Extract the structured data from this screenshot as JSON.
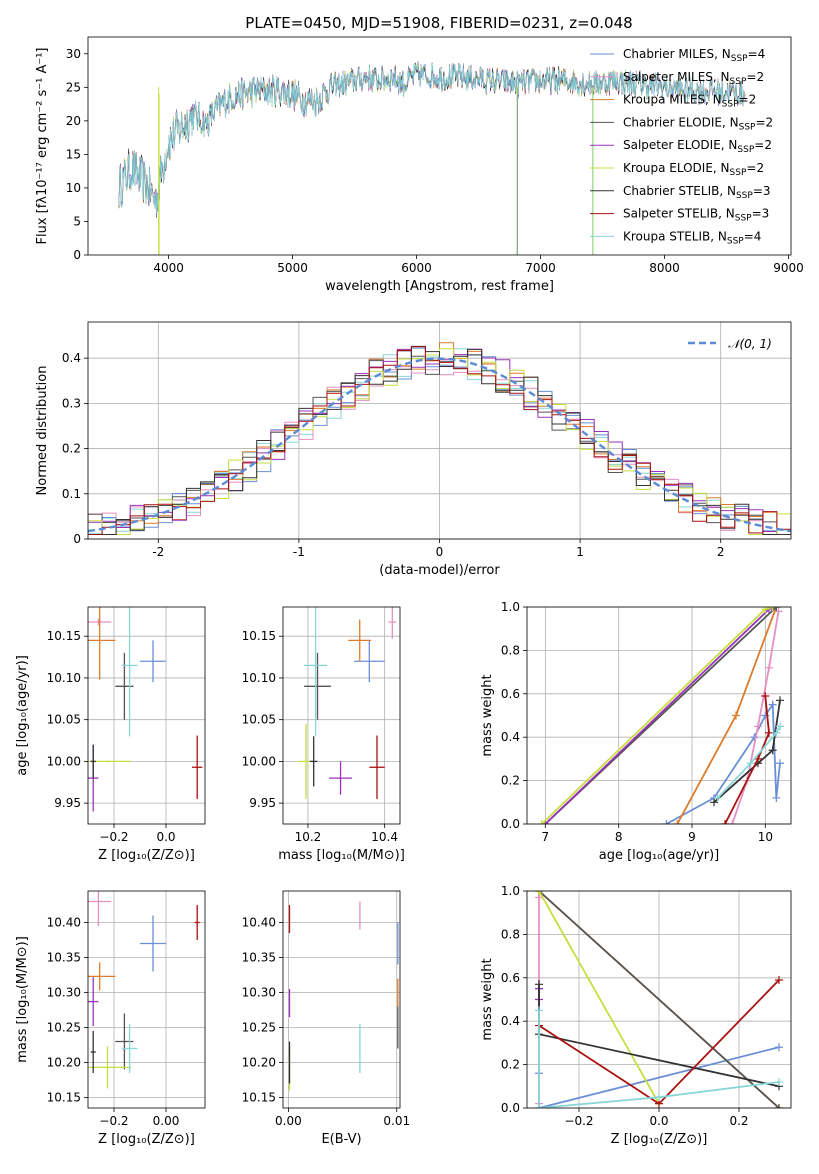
{
  "colors": [
    "#6a8fd6",
    "#e58fc2",
    "#dd7b2a",
    "#555555",
    "#9933bb",
    "#c8dd40",
    "#333333",
    "#aa1111",
    "#88d6d6"
  ],
  "chart_data": [
    {
      "type": "line",
      "title": "PLATE=0450, MJD=51908, FIBERID=0231, z=0.048",
      "xlabel": "wavelength [Angstrom, rest frame]",
      "ylabel": "Flux [fλ10⁻¹⁷ erg cm⁻² s⁻¹ A⁻¹]",
      "xlim": [
        3350,
        9020
      ],
      "ylim": [
        0,
        32.5
      ],
      "xticks": [
        4000,
        5000,
        6000,
        7000,
        8000,
        9000
      ],
      "yticks": [
        0,
        5,
        10,
        15,
        20,
        25,
        30
      ],
      "legend": "top-right",
      "spectrum_range": [
        3600,
        8650
      ],
      "spectrum_points": [
        [
          3600,
          10
        ],
        [
          3700,
          13
        ],
        [
          3800,
          11
        ],
        [
          3900,
          8
        ],
        [
          3950,
          13
        ],
        [
          4000,
          17
        ],
        [
          4100,
          19
        ],
        [
          4200,
          21
        ],
        [
          4300,
          19.5
        ],
        [
          4400,
          22
        ],
        [
          4500,
          23.5
        ],
        [
          4600,
          24
        ],
        [
          4700,
          24.5
        ],
        [
          4800,
          24.5
        ],
        [
          4900,
          24.5
        ],
        [
          5000,
          24
        ],
        [
          5100,
          23
        ],
        [
          5200,
          23
        ],
        [
          5300,
          25
        ],
        [
          5400,
          25.5
        ],
        [
          5500,
          26
        ],
        [
          5600,
          26.5
        ],
        [
          5700,
          26
        ],
        [
          5800,
          26.5
        ],
        [
          5900,
          25.5
        ],
        [
          6000,
          27
        ],
        [
          6200,
          26.5
        ],
        [
          6400,
          26.5
        ],
        [
          6600,
          26
        ],
        [
          6800,
          25.5
        ],
        [
          7000,
          26
        ],
        [
          7200,
          26
        ],
        [
          7400,
          25.5
        ],
        [
          7600,
          26
        ],
        [
          7800,
          25.5
        ],
        [
          8000,
          25
        ],
        [
          8200,
          24.5
        ],
        [
          8400,
          24.5
        ],
        [
          8650,
          24
        ]
      ],
      "series": [
        {
          "name": "Chabrier MILES, N",
          "sub": "SSP",
          "eq": "=4"
        },
        {
          "name": "Salpeter MILES, N",
          "sub": "SSP",
          "eq": "=2"
        },
        {
          "name": "Kroupa MILES, N",
          "sub": "SSP",
          "eq": "=2"
        },
        {
          "name": "Chabrier ELODIE, N",
          "sub": "SSP",
          "eq": "=2"
        },
        {
          "name": "Salpeter ELODIE, N",
          "sub": "SSP",
          "eq": "=2"
        },
        {
          "name": "Kroupa ELODIE, N",
          "sub": "SSP",
          "eq": "=2"
        },
        {
          "name": "Chabrier STELIB, N",
          "sub": "SSP",
          "eq": "=3"
        },
        {
          "name": "Salpeter STELIB, N",
          "sub": "SSP",
          "eq": "=3"
        },
        {
          "name": "Kroupa STELIB, N",
          "sub": "SSP",
          "eq": "=4"
        }
      ]
    },
    {
      "type": "histogram",
      "xlabel": "(data-model)/error",
      "ylabel": "Normed distribution",
      "xlim": [
        -2.5,
        2.5
      ],
      "ylim": [
        0,
        0.48
      ],
      "xticks": [
        -2,
        -1,
        0,
        1,
        2
      ],
      "yticks": [
        0.0,
        0.1,
        0.2,
        0.3,
        0.4
      ],
      "grid": true,
      "legend": "top-right",
      "reference_label": "𝒩(0, 1)",
      "bin_width": 0.1
    },
    {
      "type": "errorbar",
      "xlabel": "Z [log₁₀(Z/Z⊙)]",
      "ylabel": "age  [log₁₀(age/yr)]",
      "xlim": [
        -0.3,
        0.15
      ],
      "ylim": [
        9.925,
        10.185
      ],
      "xticks": [
        -0.2,
        0.0
      ],
      "xtick_labels": [
        "−0.2",
        "0.0"
      ],
      "yticks": [
        9.95,
        10.0,
        10.05,
        10.1,
        10.15
      ],
      "ytick_labels": [
        "9.95",
        "10.00",
        "10.05",
        "10.10",
        "10.15"
      ],
      "grid": true,
      "points": [
        {
          "x": -0.05,
          "y": 10.12,
          "xerr": 0.05,
          "yerr": 0.025
        },
        {
          "x": -0.26,
          "y": 10.167,
          "xerr": 0.05,
          "yerr": 0.004
        },
        {
          "x": -0.255,
          "y": 10.145,
          "xerr": 0.06,
          "yerr": 0.047
        },
        {
          "x": -0.16,
          "y": 10.09,
          "xerr": 0.035,
          "yerr": 0.04
        },
        {
          "x": -0.28,
          "y": 9.98,
          "xerr": 0.02,
          "yerr": 0.04
        },
        {
          "x": -0.225,
          "y": 10.0,
          "xerr": 0.09,
          "yerr": 0.001
        },
        {
          "x": -0.28,
          "y": 10.0,
          "xerr": 0.01,
          "yerr": 0.02
        },
        {
          "x": 0.12,
          "y": 9.993,
          "xerr": 0.02,
          "yerr": 0.038
        },
        {
          "x": -0.14,
          "y": 10.115,
          "xerr": 0.03,
          "yerr": 0.085
        }
      ]
    },
    {
      "type": "errorbar",
      "xlabel": "mass [log₁₀(M/M⊙)]",
      "ylabel": "",
      "xlim": [
        10.135,
        10.44
      ],
      "ylim": [
        9.925,
        10.185
      ],
      "xticks": [
        10.2,
        10.4
      ],
      "xtick_labels": [
        "10.2",
        "10.4"
      ],
      "yticks": [
        9.95,
        10.0,
        10.05,
        10.1,
        10.15
      ],
      "ytick_labels": [
        "9.95",
        "10.00",
        "10.05",
        "10.10",
        "10.15"
      ],
      "grid": true,
      "points": [
        {
          "x": 10.36,
          "y": 10.12,
          "xerr": 0.04,
          "yerr": 0.025
        },
        {
          "x": 10.42,
          "y": 10.167,
          "xerr": 0.01,
          "yerr": 0.02
        },
        {
          "x": 10.335,
          "y": 10.145,
          "xerr": 0.03,
          "yerr": 0.025
        },
        {
          "x": 10.225,
          "y": 10.09,
          "xerr": 0.035,
          "yerr": 0.04
        },
        {
          "x": 10.285,
          "y": 9.98,
          "xerr": 0.03,
          "yerr": 0.02
        },
        {
          "x": 10.195,
          "y": 10.0,
          "xerr": 0.02,
          "yerr": 0.045
        },
        {
          "x": 10.215,
          "y": 10.0,
          "xerr": 0.01,
          "yerr": 0.03
        },
        {
          "x": 10.38,
          "y": 9.993,
          "xerr": 0.02,
          "yerr": 0.038
        },
        {
          "x": 10.22,
          "y": 10.115,
          "xerr": 0.03,
          "yerr": 0.085
        }
      ]
    },
    {
      "type": "line",
      "xlabel": "age  [log₁₀(age/yr)]",
      "ylabel": "mass weight",
      "xlim": [
        6.75,
        10.35
      ],
      "ylim": [
        0,
        1
      ],
      "xticks": [
        7,
        8,
        9,
        10
      ],
      "yticks": [
        0.0,
        0.2,
        0.4,
        0.6,
        0.8,
        1.0
      ],
      "ytick_labels": [
        "0.0",
        "0.2",
        "0.4",
        "0.6",
        "0.8",
        "1.0"
      ],
      "grid": true,
      "series": [
        {
          "x": [
            8.65,
            9.3,
            9.85,
            10.0,
            10.1,
            10.15,
            10.2
          ],
          "y": [
            0.0,
            0.12,
            0.4,
            0.5,
            0.55,
            0.12,
            0.28
          ]
        },
        {
          "x": [
            9.55,
            9.75,
            9.9,
            10.05,
            10.18
          ],
          "y": [
            0.0,
            0.2,
            0.45,
            0.72,
            0.98
          ]
        },
        {
          "x": [
            8.8,
            9.6,
            10.15
          ],
          "y": [
            0.0,
            0.5,
            1.0
          ]
        },
        {
          "x": [
            7.0,
            10.15
          ],
          "y": [
            0.0,
            1.0
          ]
        },
        {
          "x": [
            7.0,
            10.05,
            10.1
          ],
          "y": [
            0.0,
            0.99,
            1.0
          ]
        },
        {
          "x": [
            6.95,
            10.0,
            10.1
          ],
          "y": [
            0.0,
            0.99,
            1.0
          ]
        },
        {
          "x": [
            9.3,
            9.9,
            10.1,
            10.2
          ],
          "y": [
            0.1,
            0.28,
            0.34,
            0.57
          ]
        },
        {
          "x": [
            9.45,
            9.9,
            10.05,
            10.0
          ],
          "y": [
            0.0,
            0.3,
            0.42,
            0.59
          ]
        },
        {
          "x": [
            9.35,
            9.8,
            10.15,
            10.2
          ],
          "y": [
            0.12,
            0.28,
            0.42,
            0.45
          ]
        }
      ]
    },
    {
      "type": "errorbar",
      "xlabel": "Z [log₁₀(Z/Z⊙)]",
      "ylabel": "mass [log₁₀(M/M⊙)]",
      "xlim": [
        -0.3,
        0.15
      ],
      "ylim": [
        10.135,
        10.445
      ],
      "xticks": [
        -0.2,
        0.0
      ],
      "xtick_labels": [
        "−0.2",
        "0.00"
      ],
      "yticks": [
        10.15,
        10.2,
        10.25,
        10.3,
        10.35,
        10.4
      ],
      "ytick_labels": [
        "10.15",
        "10.20",
        "10.25",
        "10.30",
        "10.35",
        "10.40"
      ],
      "grid": true,
      "points": [
        {
          "x": -0.05,
          "y": 10.37,
          "xerr": 0.05,
          "yerr": 0.04
        },
        {
          "x": -0.26,
          "y": 10.43,
          "xerr": 0.05,
          "yerr": 0.035
        },
        {
          "x": -0.255,
          "y": 10.323,
          "xerr": 0.06,
          "yerr": 0.02
        },
        {
          "x": -0.16,
          "y": 10.23,
          "xerr": 0.035,
          "yerr": 0.04
        },
        {
          "x": -0.28,
          "y": 10.287,
          "xerr": 0.02,
          "yerr": 0.035
        },
        {
          "x": -0.225,
          "y": 10.193,
          "xerr": 0.09,
          "yerr": 0.03
        },
        {
          "x": -0.28,
          "y": 10.215,
          "xerr": 0.01,
          "yerr": 0.03
        },
        {
          "x": 0.12,
          "y": 10.4,
          "xerr": 0.01,
          "yerr": 0.025
        },
        {
          "x": -0.14,
          "y": 10.22,
          "xerr": 0.03,
          "yerr": 0.035
        }
      ]
    },
    {
      "type": "errorbar",
      "xlabel": "E(B-V)",
      "ylabel": "",
      "xlim": [
        -0.0005,
        0.0103
      ],
      "ylim": [
        10.135,
        10.445
      ],
      "xticks": [
        0.0,
        0.01
      ],
      "xtick_labels": [
        "0.00",
        "0.01"
      ],
      "yticks": [
        10.15,
        10.2,
        10.25,
        10.3,
        10.35,
        10.4
      ],
      "ytick_labels": [
        "10.15",
        "10.20",
        "10.25",
        "10.30",
        "10.35",
        "10.40"
      ],
      "grid": true,
      "points": [
        {
          "x": 0.0101,
          "y": 10.37,
          "xerr": 0.0,
          "yerr": 0.03
        },
        {
          "x": 0.0066,
          "y": 10.41,
          "xerr": 0.0,
          "yerr": 0.02
        },
        {
          "x": 0.0101,
          "y": 10.3,
          "xerr": 0.0,
          "yerr": 0.02
        },
        {
          "x": 0.0101,
          "y": 10.25,
          "xerr": 0.0,
          "yerr": 0.03
        },
        {
          "x": 0.0001,
          "y": 10.285,
          "xerr": 0.0,
          "yerr": 0.02
        },
        {
          "x": 0.0001,
          "y": 10.19,
          "xerr": 0.0,
          "yerr": 0.03
        },
        {
          "x": 0.0001,
          "y": 10.2,
          "xerr": 0.0,
          "yerr": 0.03
        },
        {
          "x": 0.0001,
          "y": 10.405,
          "xerr": 0.0,
          "yerr": 0.02
        },
        {
          "x": 0.0066,
          "y": 10.22,
          "xerr": 0.0,
          "yerr": 0.035
        }
      ]
    },
    {
      "type": "line",
      "xlabel": "Z [log₁₀(Z/Z⊙)]",
      "ylabel": "mass weight",
      "xlim": [
        -0.33,
        0.33
      ],
      "ylim": [
        0,
        1
      ],
      "xticks": [
        -0.2,
        0.0,
        0.2
      ],
      "xtick_labels": [
        "−0.2",
        "0.0",
        "0.2"
      ],
      "yticks": [
        0.0,
        0.2,
        0.4,
        0.6,
        0.8,
        1.0
      ],
      "ytick_labels": [
        "0.0",
        "0.2",
        "0.4",
        "0.6",
        "0.8",
        "1.0"
      ],
      "grid": true,
      "series": [
        {
          "x": [
            -0.3,
            -0.3,
            -0.3,
            0.3
          ],
          "y": [
            0.55,
            0.16,
            0.0,
            0.28
          ]
        },
        {
          "x": [
            -0.3,
            -0.3,
            -0.3
          ],
          "y": [
            0.02,
            0.97,
            1.0
          ]
        },
        {
          "x": [
            -0.3,
            0.3
          ],
          "y": [
            1.0,
            0.0
          ]
        },
        {
          "x": [
            -0.3,
            0.3
          ],
          "y": [
            1.0,
            0.0
          ]
        },
        {
          "x": [
            -0.3,
            -0.3
          ],
          "y": [
            0.5,
            0.55
          ]
        },
        {
          "x": [
            -0.3,
            0.0
          ],
          "y": [
            1.0,
            0.02
          ]
        },
        {
          "x": [
            -0.3,
            -0.3,
            0.3
          ],
          "y": [
            0.57,
            0.34,
            0.1
          ]
        },
        {
          "x": [
            -0.3,
            0.0,
            0.3
          ],
          "y": [
            0.38,
            0.02,
            0.59
          ]
        },
        {
          "x": [
            -0.3,
            -0.3,
            0.0,
            0.3
          ],
          "y": [
            0.45,
            0.0,
            0.05,
            0.12
          ]
        }
      ]
    }
  ]
}
